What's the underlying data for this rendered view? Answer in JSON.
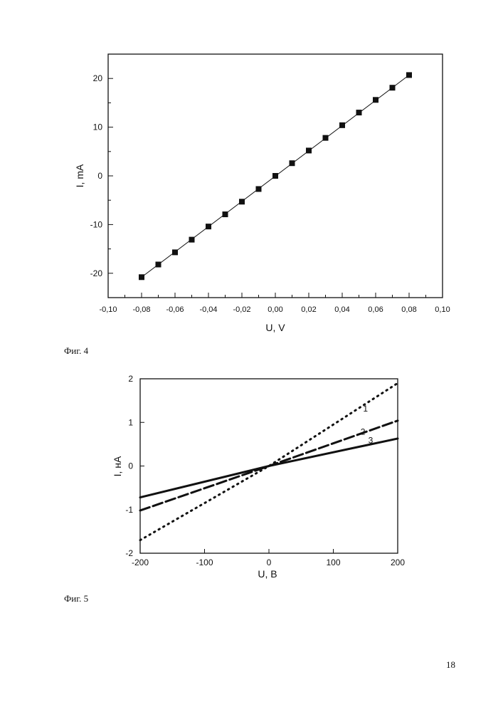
{
  "figures": [
    {
      "caption": "Фиг. 4"
    },
    {
      "caption": "Фиг. 5"
    }
  ],
  "page_number": "18",
  "chart_data": [
    {
      "type": "line",
      "xlabel": "U, V",
      "ylabel": "I, mA",
      "xlim": [
        -0.1,
        0.1
      ],
      "ylim": [
        -25,
        25
      ],
      "x_ticks": [
        -0.1,
        -0.08,
        -0.06,
        -0.04,
        -0.02,
        0.0,
        0.02,
        0.04,
        0.06,
        0.08,
        0.1
      ],
      "x_tick_labels": [
        "-0,10",
        "-0,08",
        "-0,06",
        "-0,04",
        "-0,02",
        "0,00",
        "0,02",
        "0,04",
        "0,06",
        "0,08",
        "0,10"
      ],
      "y_ticks": [
        -20,
        -10,
        0,
        10,
        20
      ],
      "y_tick_labels": [
        "-20",
        "-10",
        "0",
        "10",
        "20"
      ],
      "grid": false,
      "markers": "square",
      "series": [
        {
          "x": [
            -0.08,
            -0.07,
            -0.06,
            -0.05,
            -0.04,
            -0.03,
            -0.02,
            -0.01,
            0.0,
            0.01,
            0.02,
            0.03,
            0.04,
            0.05,
            0.06,
            0.07,
            0.08
          ],
          "y": [
            -20.8,
            -18.2,
            -15.7,
            -13.1,
            -10.4,
            -7.9,
            -5.3,
            -2.7,
            0.0,
            2.6,
            5.2,
            7.8,
            10.4,
            13.0,
            15.6,
            18.1,
            20.7
          ]
        }
      ]
    },
    {
      "type": "line",
      "xlabel": "U, В",
      "ylabel": "I, нА",
      "xlim": [
        -200,
        200
      ],
      "ylim": [
        -2,
        2
      ],
      "x_ticks": [
        -200,
        -100,
        0,
        100,
        200
      ],
      "x_tick_labels": [
        "-200",
        "-100",
        "0",
        "100",
        "200"
      ],
      "y_ticks": [
        -2,
        -1,
        0,
        1,
        2
      ],
      "y_tick_labels": [
        "-2",
        "-1",
        "0",
        "1",
        "2"
      ],
      "grid": false,
      "series": [
        {
          "name": "1",
          "style": "dotted",
          "x": [
            -200,
            0,
            200
          ],
          "y": [
            -1.7,
            0.0,
            1.9
          ]
        },
        {
          "name": "2",
          "style": "dashed",
          "x": [
            -200,
            0,
            200
          ],
          "y": [
            -1.02,
            0.0,
            1.04
          ]
        },
        {
          "name": "3",
          "style": "solid",
          "x": [
            -200,
            0,
            200
          ],
          "y": [
            -0.72,
            0.0,
            0.63
          ]
        }
      ]
    }
  ]
}
